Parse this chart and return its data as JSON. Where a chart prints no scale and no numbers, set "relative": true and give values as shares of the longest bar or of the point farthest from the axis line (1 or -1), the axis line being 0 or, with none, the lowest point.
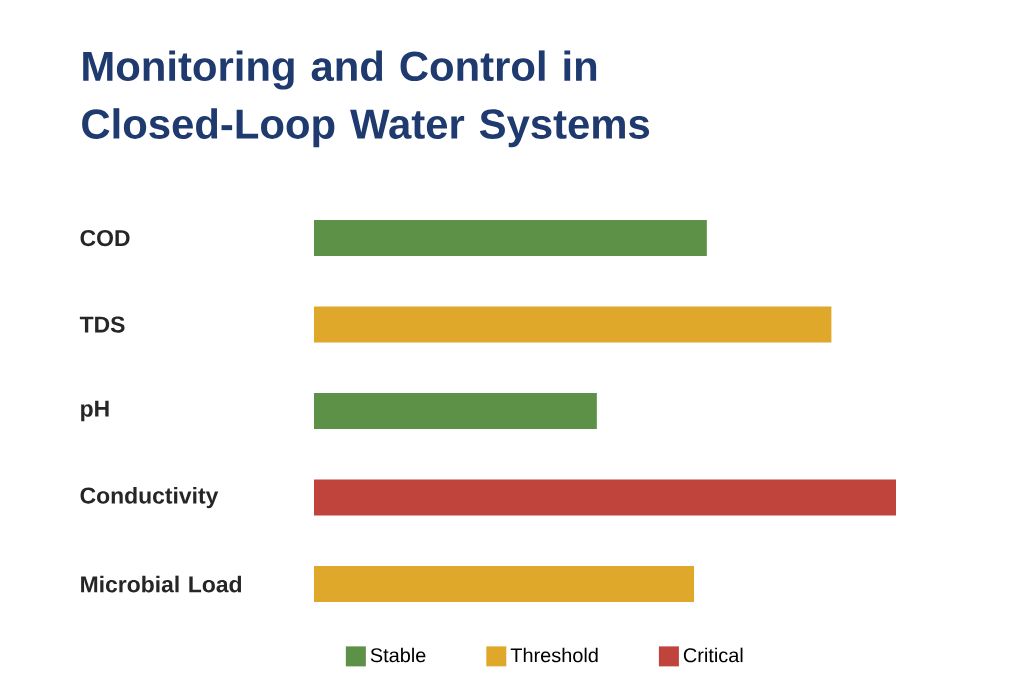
{
  "chart_data": {
    "type": "bar",
    "orientation": "horizontal",
    "relative": true,
    "title": "Monitoring and Control in Closed-Loop Water Systems",
    "categories": [
      "COD",
      "TDS",
      "pH",
      "Conductivity",
      "Microbial Load"
    ],
    "series": [
      {
        "name": "Stable",
        "color": "#5e9148",
        "values": [
          0.675,
          null,
          0.486,
          null,
          null
        ]
      },
      {
        "name": "Threshold",
        "color": "#e0a82a",
        "values": [
          null,
          0.889,
          null,
          null,
          0.653
        ]
      },
      {
        "name": "Critical",
        "color": "#c0443c",
        "values": [
          null,
          null,
          null,
          1,
          null
        ]
      }
    ],
    "legend": "bottom"
  }
}
